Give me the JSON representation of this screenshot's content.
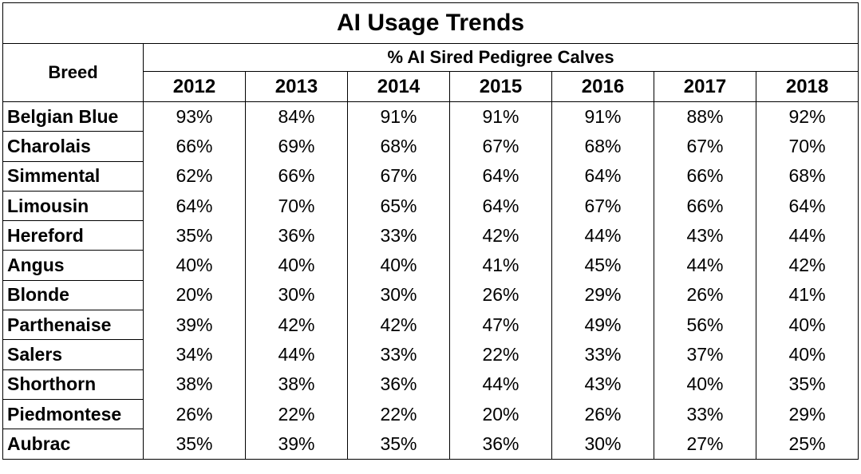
{
  "chart_data": {
    "type": "table",
    "title": "AI Usage Trends",
    "row_header": "Breed",
    "column_group_header": "% AI Sired Pedigree Calves",
    "years": [
      "2012",
      "2013",
      "2014",
      "2015",
      "2016",
      "2017",
      "2018"
    ],
    "rows": [
      {
        "breed": "Belgian Blue",
        "values": [
          "93%",
          "84%",
          "91%",
          "91%",
          "91%",
          "88%",
          "92%"
        ]
      },
      {
        "breed": "Charolais",
        "values": [
          "66%",
          "69%",
          "68%",
          "67%",
          "68%",
          "67%",
          "70%"
        ]
      },
      {
        "breed": "Simmental",
        "values": [
          "62%",
          "66%",
          "67%",
          "64%",
          "64%",
          "66%",
          "68%"
        ]
      },
      {
        "breed": "Limousin",
        "values": [
          "64%",
          "70%",
          "65%",
          "64%",
          "67%",
          "66%",
          "64%"
        ]
      },
      {
        "breed": "Hereford",
        "values": [
          "35%",
          "36%",
          "33%",
          "42%",
          "44%",
          "43%",
          "44%"
        ]
      },
      {
        "breed": "Angus",
        "values": [
          "40%",
          "40%",
          "40%",
          "41%",
          "45%",
          "44%",
          "42%"
        ]
      },
      {
        "breed": "Blonde",
        "values": [
          "20%",
          "30%",
          "30%",
          "26%",
          "29%",
          "26%",
          "41%"
        ]
      },
      {
        "breed": "Parthenaise",
        "values": [
          "39%",
          "42%",
          "42%",
          "47%",
          "49%",
          "56%",
          "40%"
        ]
      },
      {
        "breed": "Salers",
        "values": [
          "34%",
          "44%",
          "33%",
          "22%",
          "33%",
          "37%",
          "40%"
        ]
      },
      {
        "breed": "Shorthorn",
        "values": [
          "38%",
          "38%",
          "36%",
          "44%",
          "43%",
          "40%",
          "35%"
        ]
      },
      {
        "breed": "Piedmontese",
        "values": [
          "26%",
          "22%",
          "22%",
          "20%",
          "26%",
          "33%",
          "29%"
        ]
      },
      {
        "breed": "Aubrac",
        "values": [
          "35%",
          "39%",
          "35%",
          "36%",
          "30%",
          "27%",
          "25%"
        ]
      }
    ]
  }
}
